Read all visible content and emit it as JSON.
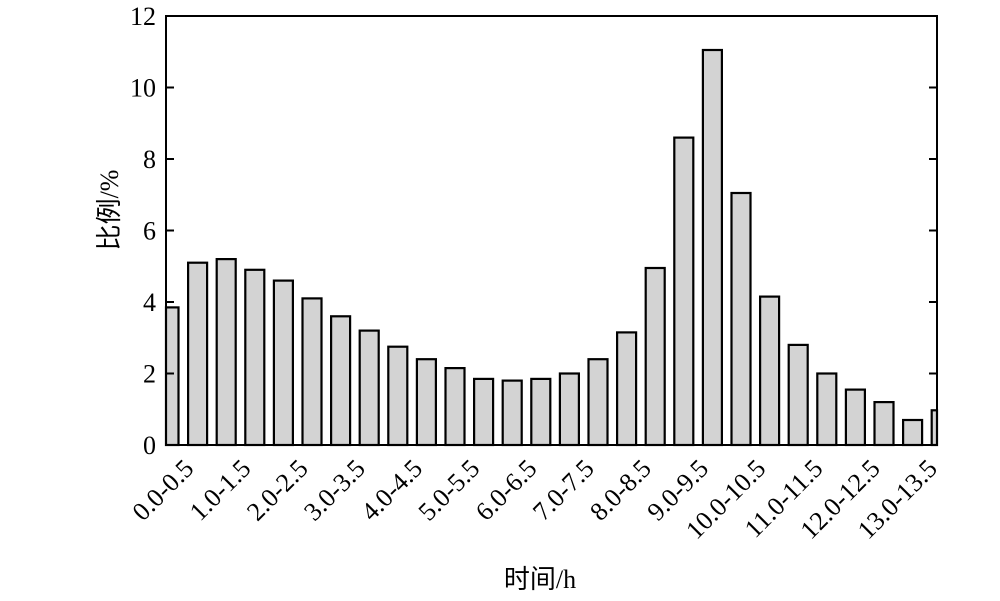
{
  "chart_data": {
    "type": "bar",
    "title": "",
    "xlabel": "时间/h",
    "ylabel": "比例/%",
    "ylim": [
      0,
      12
    ],
    "yticks": [
      "0",
      "2",
      "4",
      "6",
      "8",
      "10",
      "12"
    ],
    "categories": [
      "0.0-0.5",
      "0.5-1.0",
      "1.0-1.5",
      "1.5-2.0",
      "2.0-2.5",
      "2.5-3.0",
      "3.0-3.5",
      "3.5-4.0",
      "4.0-4.5",
      "4.5-5.0",
      "5.0-5.5",
      "5.5-6.0",
      "6.0-6.5",
      "6.5-7.0",
      "7.0-7.5",
      "7.5-8.0",
      "8.0-8.5",
      "8.5-9.0",
      "9.0-9.5",
      "9.5-10.0",
      "10.0-10.5",
      "10.5-11.0",
      "11.0-11.5",
      "11.5-12.0",
      "12.0-12.5",
      "12.5-13.0",
      "13.0-13.5",
      "13.5-14.0"
    ],
    "xtick_labels": [
      "0.0-0.5",
      "1.0-1.5",
      "2.0-2.5",
      "3.0-3.5",
      "4.0-4.5",
      "5.0-5.5",
      "6.0-6.5",
      "7.0-7.5",
      "8.0-8.5",
      "9.0-9.5",
      "10.0-10.5",
      "11.0-11.5",
      "12.0-12.5",
      "13.0-13.5"
    ],
    "values": [
      3.85,
      5.1,
      5.2,
      4.9,
      4.6,
      4.1,
      3.6,
      3.2,
      2.75,
      2.4,
      2.15,
      1.85,
      1.8,
      1.85,
      2.0,
      2.4,
      3.15,
      4.95,
      8.6,
      11.05,
      7.05,
      4.15,
      2.8,
      2.0,
      1.55,
      1.2,
      0.7,
      0.97
    ],
    "bar_color": "#d3d3d3",
    "edge_color": "#000000",
    "grid": false,
    "legend": "none"
  }
}
